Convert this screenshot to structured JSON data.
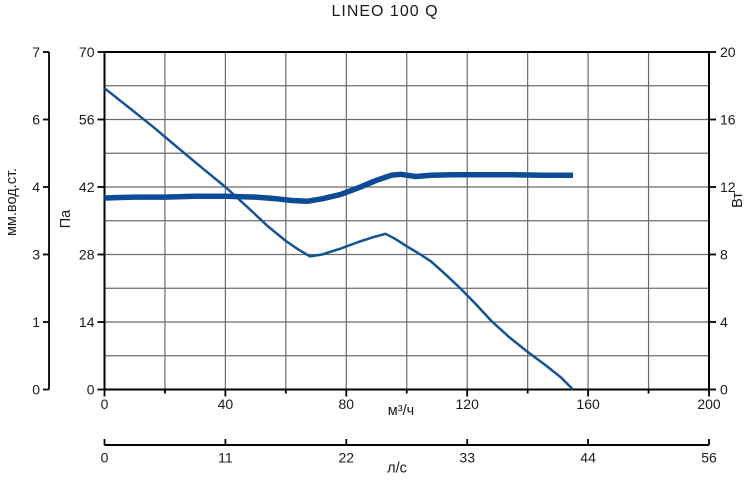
{
  "page": {
    "background": "#ffffff"
  },
  "chart_data": {
    "type": "line",
    "title": "LINEO 100 Q",
    "grid": true,
    "legend": "none",
    "axes": {
      "x_m3h": {
        "label": "м³/ч",
        "min": 0,
        "max": 200,
        "major_ticks": [
          0,
          40,
          80,
          120,
          160,
          200
        ],
        "minor_step": 20
      },
      "x_ls": {
        "label": "л/с",
        "tick_labels": [
          "0",
          "11",
          "22",
          "33",
          "44",
          "56"
        ]
      },
      "y_pa": {
        "label": "Па",
        "min": 0,
        "max": 70,
        "ticks": [
          0,
          14,
          28,
          42,
          56,
          70
        ],
        "grid_step": 7
      },
      "y_mm": {
        "label": "мм.вод.ст.",
        "tick_labels": [
          "7",
          "6",
          "4",
          "3",
          "1",
          "0"
        ],
        "tick_positions_pa": [
          70,
          56,
          42,
          28,
          14,
          0
        ]
      },
      "y_watt": {
        "label": "Вт",
        "min": 0,
        "max": 20,
        "major_ticks": [
          0,
          4,
          8,
          12,
          16,
          20
        ],
        "minor_step": 2
      }
    },
    "series": [
      {
        "name": "pressure-curve",
        "axis": "y_pa",
        "units": "Па vs м³/ч",
        "line_weight": "thin",
        "color": "#155394",
        "points": [
          [
            0,
            62.5
          ],
          [
            8,
            58.5
          ],
          [
            16,
            54.5
          ],
          [
            24,
            50.3
          ],
          [
            32,
            46.1
          ],
          [
            40,
            42.0
          ],
          [
            47,
            38.0
          ],
          [
            54,
            33.9
          ],
          [
            60,
            30.8
          ],
          [
            64,
            29.1
          ],
          [
            68,
            27.6
          ],
          [
            72,
            28.0
          ],
          [
            78,
            29.2
          ],
          [
            84,
            30.6
          ],
          [
            89,
            31.6
          ],
          [
            93,
            32.3
          ],
          [
            96,
            31.3
          ],
          [
            100,
            29.7
          ],
          [
            104,
            28.2
          ],
          [
            108,
            26.6
          ],
          [
            113,
            23.8
          ],
          [
            118,
            20.8
          ],
          [
            123,
            17.6
          ],
          [
            128,
            14.2
          ],
          [
            134,
            10.8
          ],
          [
            140,
            7.8
          ],
          [
            146,
            5.0
          ],
          [
            151,
            2.5
          ],
          [
            155,
            0
          ]
        ]
      },
      {
        "name": "power-curve",
        "axis": "y_watt",
        "units": "Вт vs м³/ч",
        "line_weight": "thick",
        "color": "#0c4c96",
        "points": [
          [
            0,
            11.35
          ],
          [
            10,
            11.4
          ],
          [
            20,
            11.4
          ],
          [
            30,
            11.45
          ],
          [
            40,
            11.45
          ],
          [
            50,
            11.4
          ],
          [
            57,
            11.3
          ],
          [
            62,
            11.2
          ],
          [
            67,
            11.15
          ],
          [
            72,
            11.3
          ],
          [
            78,
            11.55
          ],
          [
            84,
            11.95
          ],
          [
            90,
            12.4
          ],
          [
            95,
            12.7
          ],
          [
            98,
            12.75
          ],
          [
            103,
            12.62
          ],
          [
            108,
            12.7
          ],
          [
            115,
            12.72
          ],
          [
            125,
            12.72
          ],
          [
            135,
            12.72
          ],
          [
            145,
            12.7
          ],
          [
            155,
            12.7
          ]
        ]
      }
    ],
    "colors": {
      "grid": "#6b6b6b",
      "axis": "#000000",
      "text": "#1a1a1a"
    }
  }
}
